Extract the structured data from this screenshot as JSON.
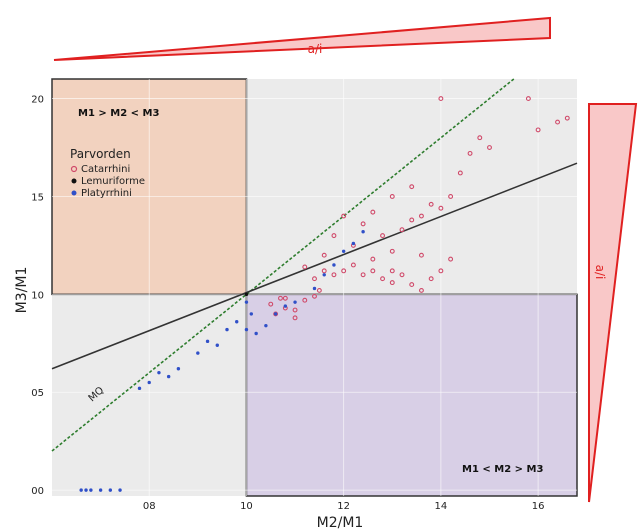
{
  "chart_data": {
    "type": "scatter",
    "title": "",
    "xlabel": "M2/M1",
    "ylabel": "M3/M1",
    "xlim": [
      0.6,
      1.68
    ],
    "ylim": [
      -0.03,
      2.1
    ],
    "x_ticks": [
      {
        "value": 0.8,
        "label": "08"
      },
      {
        "value": 1.0,
        "label": "10"
      },
      {
        "value": 1.2,
        "label": "12"
      },
      {
        "value": 1.4,
        "label": "14"
      },
      {
        "value": 1.6,
        "label": "16"
      }
    ],
    "y_ticks": [
      {
        "value": 0.0,
        "label": "00"
      },
      {
        "value": 0.5,
        "label": "05"
      },
      {
        "value": 1.0,
        "label": "10"
      },
      {
        "value": 1.5,
        "label": "15"
      },
      {
        "value": 2.0,
        "label": "20"
      }
    ],
    "grid": true,
    "legend": {
      "title": "Parvorden",
      "placement": "top-left",
      "entries": [
        {
          "name": "Catarrhini",
          "color": "#d04a6a",
          "shape": "circle-open"
        },
        {
          "name": "Lemuriforme",
          "color": "#111111",
          "shape": "circle"
        },
        {
          "name": "Platyrrhini",
          "color": "#3050c8",
          "shape": "circle"
        }
      ]
    },
    "regions": [
      {
        "label": "M1 > M2 < M3",
        "x": [
          0.6,
          1.0
        ],
        "y": [
          1.0,
          2.1
        ],
        "color": "#f2d2bf"
      },
      {
        "label": "M1 < M2 > M3",
        "x": [
          1.0,
          1.68
        ],
        "y": [
          -0.03,
          1.0
        ],
        "color": "#d8cfe6"
      }
    ],
    "lines": [
      {
        "name": "MQ",
        "style": "dotted",
        "color": "#2e7d2e",
        "points": [
          [
            0.6,
            0.2
          ],
          [
            1.55,
            2.1
          ]
        ]
      },
      {
        "name": "",
        "style": "solid",
        "color": "#333333",
        "points": [
          [
            0.6,
            0.62
          ],
          [
            1.68,
            1.67
          ]
        ]
      }
    ],
    "series": [
      {
        "name": "Catarrhini",
        "points": [
          [
            1.05,
            0.95
          ],
          [
            1.07,
            0.98
          ],
          [
            1.08,
            0.93
          ],
          [
            1.1,
            0.88
          ],
          [
            1.1,
            0.92
          ],
          [
            1.12,
            0.97
          ],
          [
            1.14,
            0.99
          ],
          [
            1.15,
            1.02
          ],
          [
            1.14,
            1.08
          ],
          [
            1.16,
            1.12
          ],
          [
            1.18,
            1.1
          ],
          [
            1.2,
            1.12
          ],
          [
            1.22,
            1.15
          ],
          [
            1.24,
            1.1
          ],
          [
            1.26,
            1.12
          ],
          [
            1.28,
            1.08
          ],
          [
            1.3,
            1.06
          ],
          [
            1.32,
            1.1
          ],
          [
            1.34,
            1.05
          ],
          [
            1.36,
            1.02
          ],
          [
            1.38,
            1.08
          ],
          [
            1.4,
            1.12
          ],
          [
            1.42,
            1.18
          ],
          [
            1.36,
            1.2
          ],
          [
            1.3,
            1.22
          ],
          [
            1.28,
            1.3
          ],
          [
            1.32,
            1.33
          ],
          [
            1.34,
            1.38
          ],
          [
            1.36,
            1.4
          ],
          [
            1.38,
            1.46
          ],
          [
            1.4,
            1.44
          ],
          [
            1.42,
            1.5
          ],
          [
            1.3,
            1.5
          ],
          [
            1.26,
            1.42
          ],
          [
            1.24,
            1.36
          ],
          [
            1.2,
            1.4
          ],
          [
            1.18,
            1.3
          ],
          [
            1.22,
            1.25
          ],
          [
            1.44,
            1.62
          ],
          [
            1.46,
            1.72
          ],
          [
            1.48,
            1.8
          ],
          [
            1.5,
            1.75
          ],
          [
            1.4,
            2.0
          ],
          [
            1.58,
            2.0
          ],
          [
            1.6,
            1.84
          ],
          [
            1.66,
            1.9
          ],
          [
            1.64,
            1.88
          ],
          [
            1.34,
            1.55
          ],
          [
            1.16,
            1.2
          ],
          [
            1.12,
            1.14
          ],
          [
            1.3,
            1.12
          ],
          [
            1.26,
            1.18
          ],
          [
            1.08,
            0.98
          ],
          [
            1.06,
            0.9
          ]
        ]
      },
      {
        "name": "Lemuriforme",
        "points": [
          [
            1.0,
            1.0
          ]
        ]
      },
      {
        "name": "Platyrrhini",
        "points": [
          [
            0.66,
            0.0
          ],
          [
            0.67,
            0.0
          ],
          [
            0.68,
            0.0
          ],
          [
            0.7,
            0.0
          ],
          [
            0.72,
            0.0
          ],
          [
            0.74,
            0.0
          ],
          [
            0.78,
            0.52
          ],
          [
            0.8,
            0.55
          ],
          [
            0.82,
            0.6
          ],
          [
            0.84,
            0.58
          ],
          [
            0.86,
            0.62
          ],
          [
            0.9,
            0.7
          ],
          [
            0.92,
            0.76
          ],
          [
            0.94,
            0.74
          ],
          [
            0.96,
            0.82
          ],
          [
            0.98,
            0.86
          ],
          [
            1.0,
            0.82
          ],
          [
            1.02,
            0.8
          ],
          [
            1.04,
            0.84
          ],
          [
            1.06,
            0.9
          ],
          [
            1.08,
            0.94
          ],
          [
            1.1,
            0.96
          ],
          [
            1.14,
            1.03
          ],
          [
            1.16,
            1.1
          ],
          [
            1.18,
            1.15
          ],
          [
            1.2,
            1.22
          ],
          [
            1.22,
            1.26
          ],
          [
            1.24,
            1.32
          ],
          [
            1.0,
            0.96
          ],
          [
            1.01,
            0.9
          ]
        ]
      }
    ],
    "annotations": [
      {
        "text": "a/i",
        "position": "top"
      },
      {
        "text": "a/i",
        "position": "right"
      },
      {
        "text": "MQ",
        "position": "lower-left"
      }
    ]
  },
  "colors": {
    "plot_background": "#ebebeb",
    "grid": "#ffffff",
    "region_upper_left": "#f2d2bf",
    "region_lower_right": "#d8cfe6",
    "wedge_fill": "#f9c8c8",
    "wedge_stroke": "#e02020",
    "catarrhini": "#d04a6a",
    "platyrrhini": "#3050c8",
    "lemuriforme": "#111111"
  }
}
